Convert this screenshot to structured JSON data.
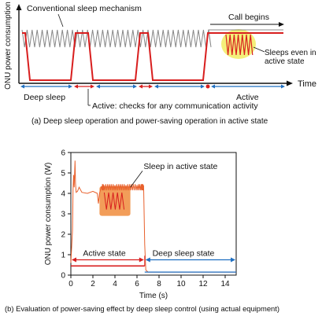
{
  "panel_a": {
    "ylabel": "ONU power consumption",
    "labels": {
      "conventional": "Conventional sleep mechanism",
      "call_begins": "Call begins",
      "sleeps_even_1": "Sleeps even in",
      "sleeps_even_2": "active state",
      "time": "Time",
      "deep_sleep": "Deep sleep",
      "active_checks": "Active: checks for any communication activity",
      "active": "Active"
    },
    "caption": "(a) Deep sleep operation and power-saving operation in active state",
    "colors": {
      "conventional": "#888888",
      "red": "#d81e1e",
      "blue": "#1f6fc1",
      "highlight": "#f4ef7a"
    }
  },
  "panel_b": {
    "caption": "(b) Evaluation of power-saving effect by deep sleep control (using actual equipment)",
    "labels": {
      "sleep_active": "Sleep in active state",
      "active_state": "Active state",
      "deep_sleep_state": "Deep sleep state"
    },
    "colors": {
      "trace": "#e8602c",
      "red": "#d81e1e",
      "blue": "#1f6fc1",
      "box": "#f08c3c"
    }
  },
  "chart_data": {
    "type": "line",
    "xlabel": "Time (s)",
    "ylabel": "ONU power consumption (W)",
    "xlim": [
      0,
      15
    ],
    "ylim": [
      0,
      6
    ],
    "x_ticks": [
      0,
      2,
      4,
      6,
      8,
      10,
      12,
      14
    ],
    "y_ticks": [
      0,
      1,
      2,
      3,
      4,
      5,
      6
    ],
    "grid": false,
    "series": [
      {
        "x": [
          0,
          0.15,
          0.2,
          0.25,
          0.3,
          0.38,
          0.42,
          0.48,
          0.6,
          0.75,
          1.0,
          1.5,
          2.0,
          2.4,
          2.5,
          2.6,
          2.7,
          2.8,
          3.0,
          3.5,
          4.0,
          4.5,
          5.0,
          5.5,
          6.0,
          6.4,
          6.6,
          6.7,
          6.8,
          7.0,
          8.0,
          10.0,
          12.0,
          14.0,
          15.0
        ],
        "y": [
          0.6,
          2.2,
          4.2,
          4.9,
          4.3,
          5.6,
          4.5,
          4.05,
          4.1,
          4.3,
          4.05,
          4.0,
          4.1,
          4.0,
          3.5,
          4.0,
          4.2,
          4.35,
          4.4,
          4.45,
          4.4,
          4.45,
          4.4,
          4.45,
          4.4,
          4.45,
          4.4,
          1.5,
          0.25,
          0.15,
          0.15,
          0.15,
          0.15,
          0.15,
          0.15
        ]
      }
    ],
    "annotations": [
      "Sleep in active state",
      "Active state",
      "Deep sleep state"
    ]
  }
}
